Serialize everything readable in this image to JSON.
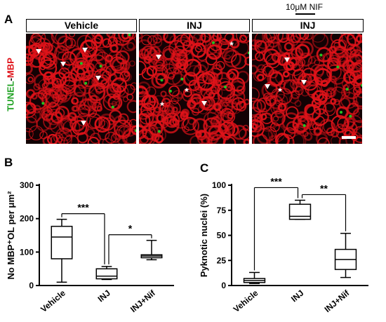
{
  "panel_a": {
    "letter": "A",
    "treatment_label": "10μM NIF",
    "y_label_tunel": "TUNEL",
    "y_label_sep": "-",
    "y_label_mbp": "MBP",
    "headers": [
      "Vehicle",
      "INJ",
      "INJ"
    ],
    "colors": {
      "mbp": "#e0131a",
      "tunel": "#22c425",
      "background": "#120204"
    }
  },
  "panel_b": {
    "letter": "B",
    "ylabel": "No MBP⁺OL per μm²",
    "sig": [
      "***",
      "*"
    ]
  },
  "panel_c": {
    "letter": "C",
    "ylabel": "Pyknotic nuclei (%)",
    "sig": [
      "***",
      "**"
    ]
  },
  "chart_data": [
    {
      "type": "box",
      "panel": "B",
      "categories": [
        "Vehicle",
        "INJ",
        "INJ+Nif"
      ],
      "ylabel": "No MBP⁺OL per μm²",
      "ylim": [
        0,
        300
      ],
      "yticks": [
        0,
        100,
        200,
        300
      ],
      "boxes": [
        {
          "min": 10,
          "q1": 80,
          "median": 145,
          "q3": 177,
          "max": 198
        },
        {
          "min": 18,
          "q1": 20,
          "median": 28,
          "q3": 50,
          "max": 57
        },
        {
          "min": 77,
          "q1": 83,
          "median": 88,
          "q3": 92,
          "max": 135
        }
      ],
      "significance": [
        {
          "from": "Vehicle",
          "to": "INJ",
          "label": "***"
        },
        {
          "from": "INJ",
          "to": "INJ+Nif",
          "label": "*"
        }
      ]
    },
    {
      "type": "box",
      "panel": "C",
      "categories": [
        "Vehicle",
        "INJ",
        "INJ+Nif"
      ],
      "ylabel": "Pyknotic nuclei (%)",
      "ylim": [
        0,
        100
      ],
      "yticks": [
        0,
        25,
        50,
        75,
        100
      ],
      "boxes": [
        {
          "min": 2,
          "q1": 3,
          "median": 5,
          "q3": 7,
          "max": 13
        },
        {
          "min": 66,
          "q1": 66,
          "median": 69,
          "q3": 81,
          "max": 85
        },
        {
          "min": 8,
          "q1": 16,
          "median": 26,
          "q3": 36,
          "max": 52
        }
      ],
      "significance": [
        {
          "from": "Vehicle",
          "to": "INJ",
          "label": "***"
        },
        {
          "from": "INJ",
          "to": "INJ+Nif",
          "label": "**"
        }
      ]
    }
  ]
}
